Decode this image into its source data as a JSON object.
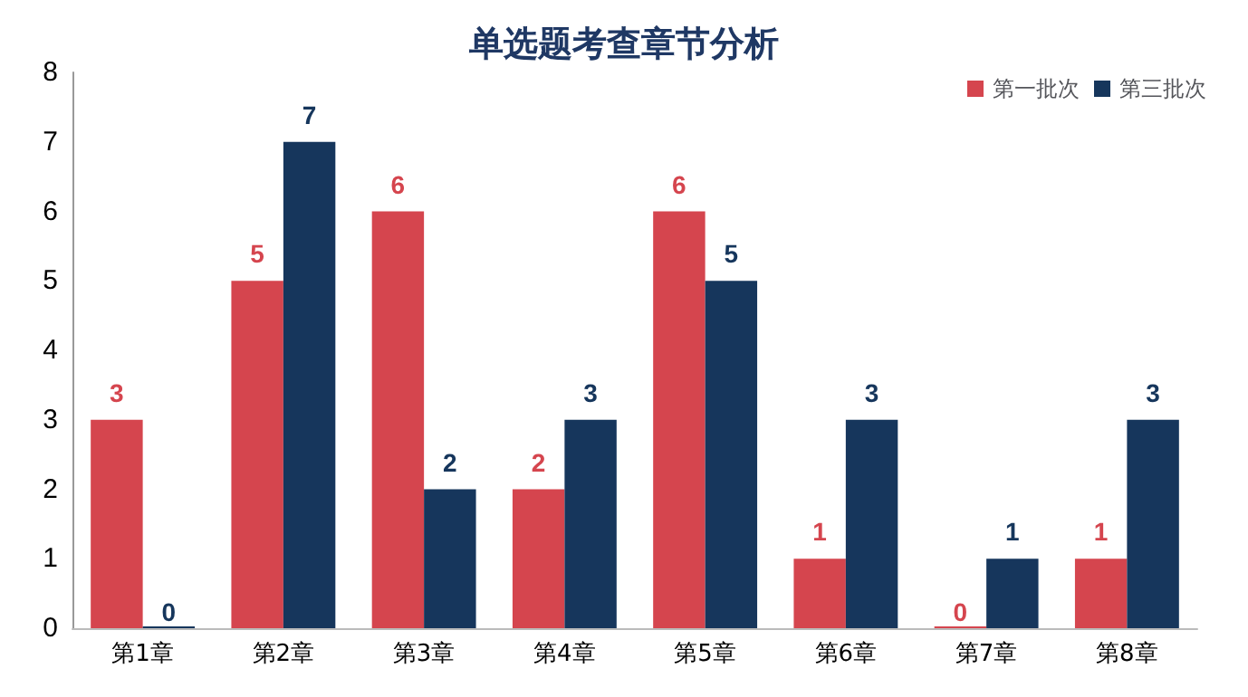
{
  "chart_data": {
    "type": "bar",
    "title": "单选题考查章节分析",
    "categories": [
      "第1章",
      "第2章",
      "第3章",
      "第4章",
      "第5章",
      "第6章",
      "第7章",
      "第8章"
    ],
    "series": [
      {
        "name": "第一批次",
        "color": "#d5454e",
        "values": [
          3,
          5,
          6,
          2,
          6,
          1,
          0,
          1
        ]
      },
      {
        "name": "第三批次",
        "color": "#16365c",
        "values": [
          0,
          7,
          2,
          3,
          5,
          3,
          1,
          3
        ]
      }
    ],
    "ylim": [
      0,
      8
    ],
    "yticks": [
      0,
      1,
      2,
      3,
      4,
      5,
      6,
      7,
      8
    ],
    "grid": false,
    "legend": "top right",
    "data_labels": true
  }
}
